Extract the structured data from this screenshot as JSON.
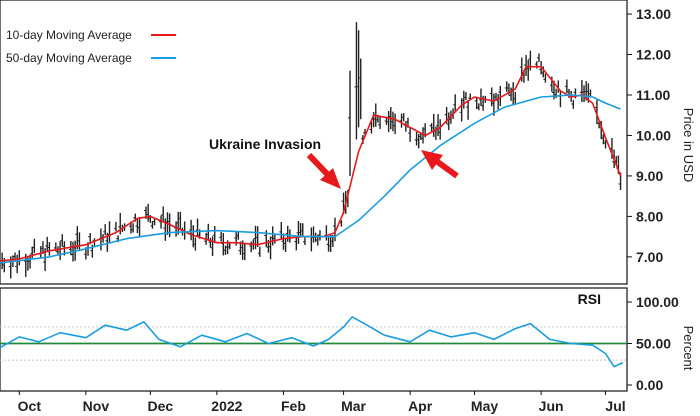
{
  "chart_data": [
    {
      "type": "line",
      "panel": "price",
      "ylabel": "Price in USD",
      "ylim": [
        6.7,
        13.1
      ],
      "yticks": [
        "13.00",
        "12.00",
        "11.00",
        "10.00",
        "9.00",
        "8.00",
        "7.00"
      ],
      "grid": false,
      "legend_position": "top-left",
      "annotation": "Ukraine Invasion",
      "series": [
        {
          "name": "10-day Moving Average",
          "color": "#e8191c",
          "x": [
            "2021-09-22",
            "2021-10-01",
            "2021-10-15",
            "2021-11-01",
            "2021-11-15",
            "2021-11-25",
            "2021-12-01",
            "2021-12-10",
            "2021-12-20",
            "2022-01-01",
            "2022-01-10",
            "2022-01-20",
            "2022-02-01",
            "2022-02-10",
            "2022-02-20",
            "2022-02-25",
            "2022-03-01",
            "2022-03-08",
            "2022-03-15",
            "2022-03-25",
            "2022-04-01",
            "2022-04-08",
            "2022-04-15",
            "2022-04-25",
            "2022-05-01",
            "2022-05-10",
            "2022-05-20",
            "2022-05-25",
            "2022-06-01",
            "2022-06-10",
            "2022-06-15",
            "2022-06-20",
            "2022-06-25",
            "2022-07-01",
            "2022-07-08"
          ],
          "y": [
            6.9,
            6.95,
            7.15,
            7.3,
            7.6,
            7.95,
            8.0,
            7.8,
            7.55,
            7.35,
            7.35,
            7.3,
            7.45,
            7.5,
            7.5,
            7.6,
            8.1,
            9.6,
            10.5,
            10.4,
            10.2,
            10.0,
            10.2,
            10.75,
            10.95,
            10.85,
            11.15,
            11.7,
            11.7,
            11.1,
            10.95,
            11.0,
            10.8,
            9.95,
            9.0
          ]
        },
        {
          "name": "50-day Moving Average",
          "color": "#1a9de0",
          "x": [
            "2021-09-22",
            "2021-10-15",
            "2021-11-01",
            "2021-11-20",
            "2021-12-10",
            "2022-01-01",
            "2022-01-20",
            "2022-02-10",
            "2022-02-25",
            "2022-03-08",
            "2022-03-20",
            "2022-04-01",
            "2022-04-15",
            "2022-05-01",
            "2022-05-15",
            "2022-06-01",
            "2022-06-15",
            "2022-06-25",
            "2022-07-01",
            "2022-07-08"
          ],
          "y": [
            6.85,
            7.0,
            7.2,
            7.45,
            7.6,
            7.65,
            7.6,
            7.5,
            7.5,
            7.9,
            8.5,
            9.15,
            9.75,
            10.3,
            10.7,
            10.95,
            11.0,
            10.95,
            10.8,
            10.65
          ]
        }
      ]
    },
    {
      "type": "line",
      "panel": "rsi",
      "title": "RSI",
      "ylabel": "Percent",
      "ylim": [
        0,
        100
      ],
      "yticks": [
        "100.00",
        "50.00",
        "0.00"
      ],
      "reference_lines": [
        {
          "y": 50,
          "color": "#1f8a3a"
        },
        {
          "y": 70,
          "color": "#c9c9c9"
        },
        {
          "y": 30,
          "color": "#c9c9c9"
        }
      ],
      "series": [
        {
          "name": "RSI",
          "color": "#1a9de0",
          "x": [
            "2021-09-22",
            "2021-10-01",
            "2021-10-10",
            "2021-10-20",
            "2021-11-01",
            "2021-11-10",
            "2021-11-20",
            "2021-11-28",
            "2021-12-05",
            "2021-12-15",
            "2021-12-25",
            "2022-01-05",
            "2022-01-15",
            "2022-01-25",
            "2022-02-05",
            "2022-02-15",
            "2022-02-22",
            "2022-03-01",
            "2022-03-05",
            "2022-03-10",
            "2022-03-20",
            "2022-04-01",
            "2022-04-10",
            "2022-04-20",
            "2022-05-01",
            "2022-05-10",
            "2022-05-20",
            "2022-05-27",
            "2022-06-05",
            "2022-06-15",
            "2022-06-25",
            "2022-07-01",
            "2022-07-05",
            "2022-07-09"
          ],
          "y": [
            45,
            58,
            52,
            63,
            57,
            72,
            66,
            76,
            55,
            46,
            60,
            52,
            62,
            50,
            57,
            47,
            55,
            70,
            82,
            75,
            60,
            52,
            66,
            58,
            63,
            55,
            68,
            74,
            55,
            50,
            48,
            38,
            22,
            27
          ]
        }
      ]
    }
  ],
  "x_axis": {
    "tick_labels": [
      "Oct",
      "Nov",
      "Dec",
      "2022",
      "Feb",
      "Mar",
      "Apr",
      "May",
      "Jun",
      "Jul"
    ],
    "tick_dates": [
      "2021-10-01",
      "2021-11-01",
      "2021-12-01",
      "2022-01-01",
      "2022-02-01",
      "2022-03-01",
      "2022-04-01",
      "2022-05-01",
      "2022-06-01",
      "2022-07-01"
    ],
    "start": "2021-09-22",
    "end": "2022-07-11"
  },
  "colors": {
    "price_bars": "#222222",
    "ma10": "#e8191c",
    "ma50": "#1a9de0",
    "rsi": "#1a9de0",
    "rsi_mid": "#1f8a3a",
    "rsi_band": "#c9c9c9",
    "arrow": "#e8191c"
  },
  "icons": [
    "arrow-right-down",
    "arrow-left-down"
  ]
}
